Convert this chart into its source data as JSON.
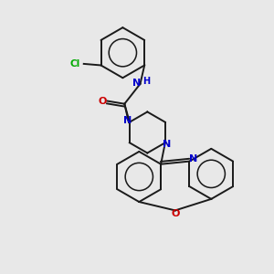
{
  "background_color": "#e8e8e8",
  "bond_color": "#1a1a1a",
  "atom_colors": {
    "N": "#0000cc",
    "O": "#cc0000",
    "Cl": "#00aa00",
    "C": "#1a1a1a"
  },
  "figsize": [
    3.0,
    3.0
  ],
  "dpi": 100
}
